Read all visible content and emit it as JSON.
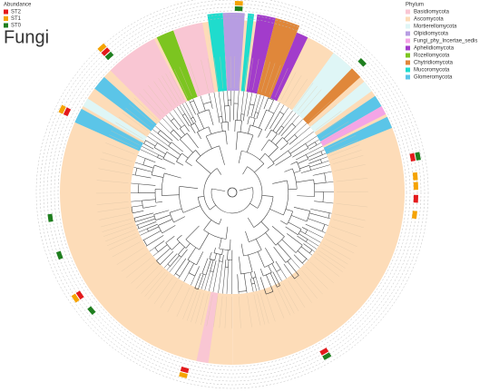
{
  "title": "Fungi",
  "abundance_legend": {
    "title": "Abundance",
    "items": [
      {
        "label": "ST2",
        "color": "#e41a1c"
      },
      {
        "label": "ST1",
        "color": "#f5a300"
      },
      {
        "label": "ST0",
        "color": "#1f7f1f"
      }
    ]
  },
  "phylum_legend": {
    "title": "Phylum",
    "items": [
      {
        "label": "Basidiomycota",
        "color": "#f9c6d3"
      },
      {
        "label": "Ascomycota",
        "color": "#fddcb8"
      },
      {
        "label": "Mortierellomycota",
        "color": "#dff6f6"
      },
      {
        "label": "Olpidiomycota",
        "color": "#b79de2"
      },
      {
        "label": "Fungi_phy_Incertae_sedis",
        "color": "#f4a5e6"
      },
      {
        "label": "Aphelidiomycota",
        "color": "#a23ccb"
      },
      {
        "label": "Rozellomycota",
        "color": "#7cc520"
      },
      {
        "label": "Chytridiomycota",
        "color": "#e0873a"
      },
      {
        "label": "Mucoromycota",
        "color": "#1fdccd"
      },
      {
        "label": "Glomeromycota",
        "color": "#5bc5e8"
      }
    ]
  }
}
